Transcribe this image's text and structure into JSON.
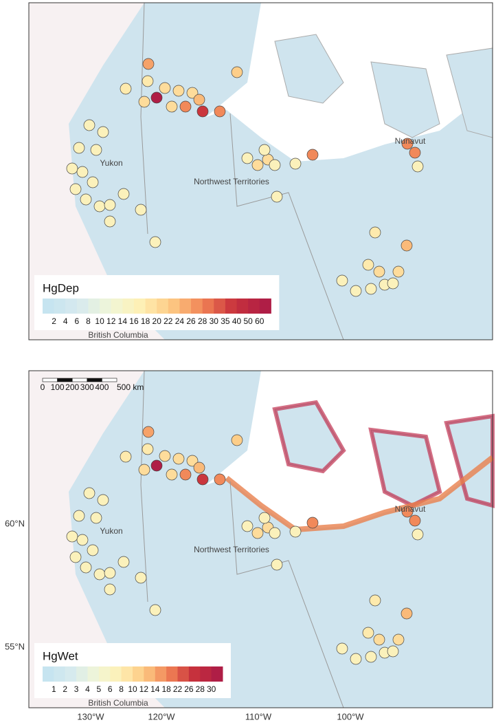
{
  "panels": [
    {
      "legend": {
        "title": "HgDep",
        "labels": [
          "2",
          "4",
          "6",
          "8",
          "10",
          "12",
          "14",
          "16",
          "18",
          "20",
          "22",
          "24",
          "26",
          "28",
          "30",
          "35",
          "40",
          "50",
          "60"
        ]
      },
      "regions": {
        "yukon": "Yukon",
        "nwt": "Northwest Territories",
        "nunavut": "Nunavut",
        "bc": "British Columbia"
      }
    },
    {
      "legend": {
        "title": "HgWet",
        "labels": [
          "1",
          "2",
          "3",
          "4",
          "5",
          "6",
          "8",
          "10",
          "12",
          "14",
          "18",
          "22",
          "26",
          "28",
          "30"
        ]
      },
      "regions": {
        "yukon": "Yukon",
        "nwt": "Northwest Territories",
        "nunavut": "Nunavut",
        "bc": "British Columbia"
      },
      "scale_bar": {
        "labels": [
          "0",
          "100",
          "200",
          "300",
          "400",
          "500 km"
        ]
      }
    }
  ],
  "x_axis": {
    "ticks": [
      "130°W",
      "120°W",
      "110°W",
      "100°W"
    ]
  },
  "y_axis": {
    "ticks": [
      "60°N",
      "55°N"
    ]
  }
}
